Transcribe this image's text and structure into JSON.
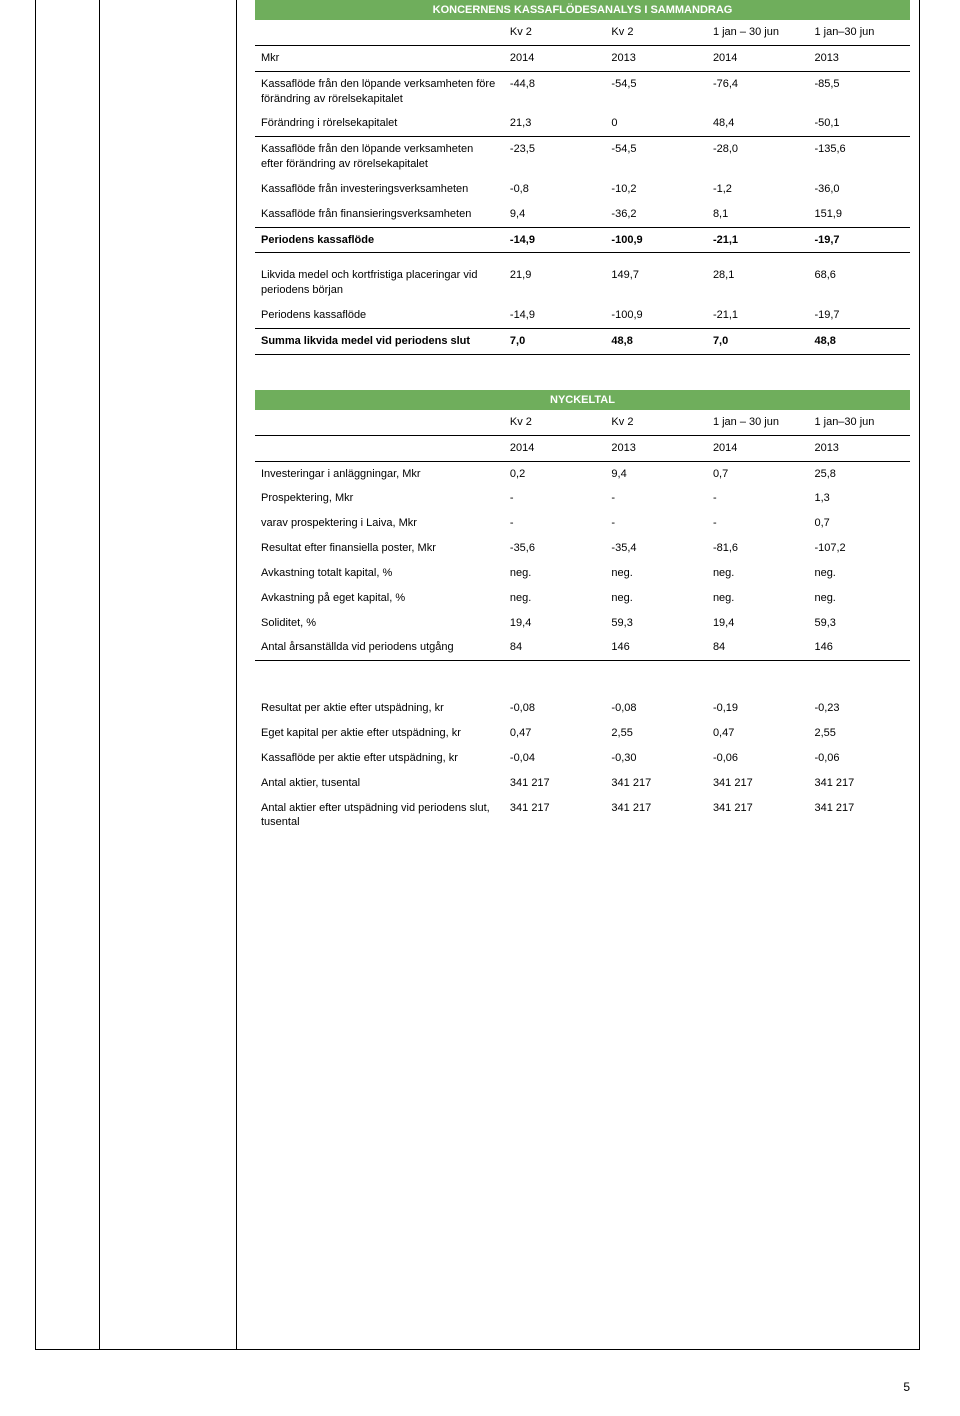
{
  "colors": {
    "header_bg": "#6fae5c",
    "header_fg": "#ffffff",
    "border": "#000000",
    "text": "#000000",
    "page_bg": "#ffffff"
  },
  "page_number": "5",
  "t1": {
    "title": "KONCERNENS KASSAFLÖDESANALYS I SAMMANDRAG",
    "h": {
      "c1": "Kv 2",
      "c2": "Kv 2",
      "c3": "1 jan – 30 jun",
      "c4": "1 jan–30 jun"
    },
    "mkr": "Mkr",
    "y": {
      "c1": "2014",
      "c2": "2013",
      "c3": "2014",
      "c4": "2013"
    },
    "rows": [
      {
        "label": "Kassaflöde från den löpande verksamheten före förändring av rörelsekapitalet",
        "v": [
          "-44,8",
          "-54,5",
          "-76,4",
          "-85,5"
        ]
      },
      {
        "label": "Förändring i rörelsekapitalet",
        "v": [
          "21,3",
          "0",
          "48,4",
          "-50,1"
        ],
        "border_bottom": true
      },
      {
        "label": "Kassaflöde från den löpande verksamheten efter förändring av rörelsekapitalet",
        "v": [
          "-23,5",
          "-54,5",
          "-28,0",
          "-135,6"
        ]
      },
      {
        "label": "Kassaflöde från investeringsverksamheten",
        "v": [
          "-0,8",
          "-10,2",
          "-1,2",
          "-36,0"
        ]
      },
      {
        "label": "Kassaflöde från finansieringsverksamheten",
        "v": [
          "9,4",
          "-36,2",
          "8,1",
          "151,9"
        ],
        "border_bottom": true
      },
      {
        "label": "Periodens kassaflöde",
        "v": [
          "-14,9",
          "-100,9",
          "-21,1",
          "-19,7"
        ],
        "bold": true
      }
    ],
    "sub_rows": [
      {
        "label": "Likvida medel och kortfristiga placeringar vid periodens början",
        "v": [
          "21,9",
          "149,7",
          "28,1",
          "68,6"
        ]
      },
      {
        "label": "Periodens kassaflöde",
        "v": [
          "-14,9",
          "-100,9",
          "-21,1",
          "-19,7"
        ],
        "border_bottom": true
      }
    ],
    "grand": {
      "label": "Summa likvida medel vid periodens slut",
      "v": [
        "7,0",
        "48,8",
        "7,0",
        "48,8"
      ]
    }
  },
  "t2": {
    "title": "NYCKELTAL",
    "h": {
      "c1": "Kv 2",
      "c2": "Kv 2",
      "c3": "1 jan – 30 jun",
      "c4": "1 jan–30 jun"
    },
    "y": {
      "c1": "2014",
      "c2": "2013",
      "c3": "2014",
      "c4": "2013"
    },
    "rows": [
      {
        "label": "Investeringar i anläggningar, Mkr",
        "v": [
          "0,2",
          "9,4",
          "0,7",
          "25,8"
        ]
      },
      {
        "label": "Prospektering, Mkr",
        "v": [
          "-",
          "-",
          "-",
          "1,3"
        ]
      },
      {
        "label": "varav prospektering i Laiva, Mkr",
        "v": [
          "-",
          "-",
          "-",
          "0,7"
        ]
      },
      {
        "label": "Resultat efter finansiella poster, Mkr",
        "v": [
          "-35,6",
          "-35,4",
          "-81,6",
          "-107,2"
        ]
      },
      {
        "label": "Avkastning totalt kapital, %",
        "v": [
          "neg.",
          "neg.",
          "neg.",
          "neg."
        ]
      },
      {
        "label": "Avkastning på eget kapital, %",
        "v": [
          "neg.",
          "neg.",
          "neg.",
          "neg."
        ]
      },
      {
        "label": "Soliditet, %",
        "v": [
          "19,4",
          "59,3",
          "19,4",
          "59,3"
        ]
      },
      {
        "label": "Antal årsanställda vid periodens utgång",
        "v": [
          "84",
          "146",
          "84",
          "146"
        ]
      }
    ]
  },
  "t3": {
    "rows": [
      {
        "label": "Resultat per aktie efter utspädning, kr",
        "v": [
          "-0,08",
          "-0,08",
          "-0,19",
          "-0,23"
        ]
      },
      {
        "label": "Eget kapital per aktie efter utspädning, kr",
        "v": [
          "0,47",
          "2,55",
          "0,47",
          "2,55"
        ]
      },
      {
        "label": "Kassaflöde per aktie efter utspädning, kr",
        "v": [
          "-0,04",
          "-0,30",
          "-0,06",
          "-0,06"
        ]
      },
      {
        "label": "Antal aktier, tusental",
        "v": [
          "341 217",
          "341 217",
          "341 217",
          "341 217"
        ]
      },
      {
        "label": "Antal aktier efter utspädning vid periodens slut, tusental",
        "v": [
          "341 217",
          "341 217",
          "341 217",
          "341 217"
        ]
      }
    ]
  }
}
